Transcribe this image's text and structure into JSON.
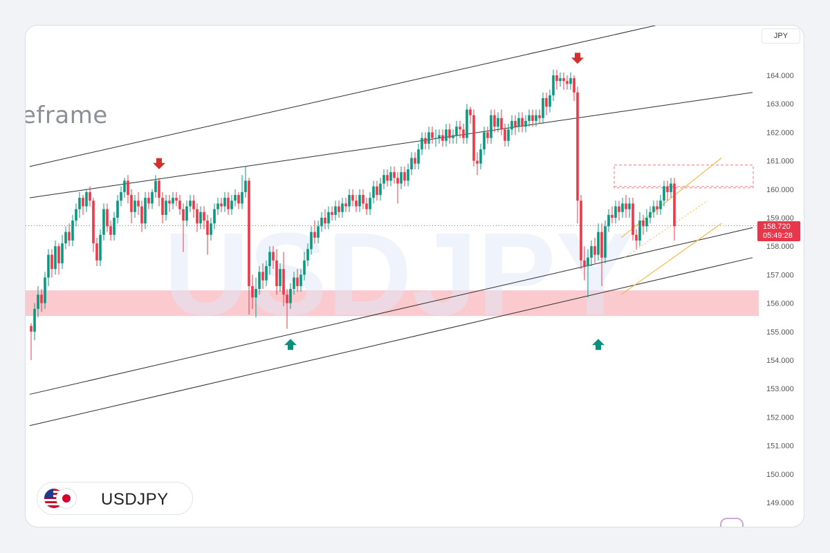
{
  "header": {
    "currency": "JPY"
  },
  "overlay": {
    "timeframe_text": "eframe",
    "watermark": "USDJPY"
  },
  "symbol": {
    "name": "USDJPY",
    "base_flag": "us-flag-icon",
    "quote_flag": "jp-flag-icon"
  },
  "price_tag": {
    "price": "158.720",
    "countdown": "05:49:28"
  },
  "colors": {
    "up": "#089981",
    "down": "#f23645",
    "zone": "#f9a6ad",
    "channel": "#2b2b2b",
    "wedge": "#f5b94a",
    "current_line": "#f23645"
  },
  "chart_data": {
    "type": "candlestick",
    "symbol": "USDJPY",
    "ylim": [
      148.6,
      164.8
    ],
    "yticks": [
      "164.000",
      "163.000",
      "162.000",
      "161.000",
      "160.000",
      "159.000",
      "158.000",
      "157.000",
      "156.000",
      "155.000",
      "154.000",
      "153.000",
      "152.000",
      "151.000",
      "150.000",
      "149.000"
    ],
    "current_price": 158.72,
    "support_zone": [
      155.55,
      156.45
    ],
    "rectangle_zone": [
      160.05,
      160.85
    ],
    "channel_lines": [
      {
        "from": [
          0,
          160.8
        ],
        "to": [
          190,
          166.0
        ]
      },
      {
        "from": [
          0,
          159.7
        ],
        "to": [
          209,
          163.4
        ]
      },
      {
        "from": [
          0,
          152.8
        ],
        "to": [
          209,
          158.65
        ]
      },
      {
        "from": [
          0,
          151.7
        ],
        "to": [
          209,
          157.6
        ]
      }
    ],
    "wedge_lines": [
      {
        "from": [
          171,
          158.3
        ],
        "to": [
          200,
          161.1
        ]
      },
      {
        "from": [
          171,
          156.3
        ],
        "to": [
          200,
          158.8
        ]
      }
    ],
    "arrows": [
      {
        "type": "down",
        "index": 37,
        "price": 160.85
      },
      {
        "type": "down",
        "index": 158,
        "price": 164.55
      },
      {
        "type": "up",
        "index": 75,
        "price": 154.6
      },
      {
        "type": "up",
        "index": 164,
        "price": 154.6
      }
    ],
    "candles": [
      [
        155.2,
        155.0,
        155.3,
        154.0
      ],
      [
        155.0,
        155.8,
        156.0,
        154.7
      ],
      [
        155.8,
        156.3,
        156.6,
        155.5
      ],
      [
        156.3,
        156.0,
        156.5,
        155.7
      ],
      [
        156.0,
        156.9,
        157.1,
        155.8
      ],
      [
        156.9,
        157.7,
        157.9,
        156.6
      ],
      [
        157.7,
        157.2,
        157.9,
        156.9
      ],
      [
        157.2,
        158.0,
        158.2,
        157.0
      ],
      [
        158.0,
        157.4,
        158.1,
        157.0
      ],
      [
        157.4,
        158.1,
        158.4,
        157.2
      ],
      [
        158.1,
        158.5,
        158.7,
        157.9
      ],
      [
        158.5,
        158.2,
        158.8,
        158.0
      ],
      [
        158.2,
        158.9,
        159.1,
        158.0
      ],
      [
        158.9,
        159.3,
        159.5,
        158.7
      ],
      [
        159.3,
        159.7,
        159.9,
        159.0
      ],
      [
        159.7,
        159.4,
        159.8,
        159.1
      ],
      [
        159.4,
        159.9,
        160.0,
        159.2
      ],
      [
        159.9,
        159.6,
        160.1,
        159.4
      ],
      [
        159.6,
        158.1,
        159.7,
        157.8
      ],
      [
        158.1,
        157.5,
        158.3,
        157.3
      ],
      [
        157.5,
        158.4,
        158.6,
        157.3
      ],
      [
        158.4,
        159.3,
        159.5,
        158.2
      ],
      [
        159.3,
        158.7,
        159.5,
        158.5
      ],
      [
        158.7,
        158.4,
        158.9,
        158.2
      ],
      [
        158.4,
        159.0,
        159.2,
        158.2
      ],
      [
        159.0,
        159.6,
        159.8,
        158.8
      ],
      [
        159.6,
        159.9,
        160.1,
        159.4
      ],
      [
        159.9,
        160.3,
        160.4,
        159.7
      ],
      [
        160.3,
        159.8,
        160.5,
        159.5
      ],
      [
        159.8,
        159.2,
        160.0,
        158.8
      ],
      [
        159.2,
        159.6,
        159.8,
        159.0
      ],
      [
        159.6,
        159.4,
        159.9,
        159.1
      ],
      [
        159.4,
        158.8,
        159.6,
        158.5
      ],
      [
        158.8,
        159.7,
        159.9,
        158.6
      ],
      [
        159.7,
        159.5,
        159.9,
        159.3
      ],
      [
        159.5,
        159.9,
        160.0,
        159.3
      ],
      [
        159.9,
        160.3,
        160.5,
        159.7
      ],
      [
        160.3,
        159.7,
        160.4,
        159.4
      ],
      [
        159.7,
        159.1,
        159.9,
        158.8
      ],
      [
        159.1,
        159.6,
        159.8,
        158.9
      ],
      [
        159.6,
        159.5,
        159.8,
        159.2
      ],
      [
        159.5,
        159.7,
        159.9,
        159.3
      ],
      [
        159.7,
        159.6,
        159.9,
        159.4
      ],
      [
        159.6,
        159.3,
        159.8,
        159.1
      ],
      [
        159.3,
        158.9,
        159.5,
        157.8
      ],
      [
        158.9,
        159.4,
        159.6,
        158.7
      ],
      [
        159.4,
        159.6,
        159.8,
        159.2
      ],
      [
        159.6,
        159.3,
        159.8,
        159.0
      ],
      [
        159.3,
        158.8,
        159.5,
        158.5
      ],
      [
        158.8,
        159.2,
        159.4,
        158.6
      ],
      [
        159.2,
        158.9,
        159.4,
        158.6
      ],
      [
        158.9,
        158.4,
        159.1,
        157.7
      ],
      [
        158.4,
        158.8,
        159.0,
        158.2
      ],
      [
        158.8,
        159.3,
        159.5,
        158.6
      ],
      [
        159.3,
        159.5,
        159.7,
        159.1
      ],
      [
        159.5,
        159.4,
        159.7,
        159.2
      ],
      [
        159.4,
        159.7,
        159.9,
        159.2
      ],
      [
        159.7,
        159.3,
        159.9,
        159.1
      ],
      [
        159.3,
        159.6,
        159.8,
        159.1
      ],
      [
        159.6,
        159.8,
        160.0,
        159.4
      ],
      [
        159.8,
        159.5,
        159.9,
        159.3
      ],
      [
        159.5,
        159.9,
        160.5,
        159.3
      ],
      [
        159.9,
        160.3,
        160.8,
        159.7
      ],
      [
        160.3,
        156.6,
        160.4,
        155.6
      ],
      [
        156.6,
        156.2,
        157.0,
        155.8
      ],
      [
        156.2,
        156.5,
        156.9,
        155.5
      ],
      [
        156.5,
        157.1,
        157.3,
        156.3
      ],
      [
        157.1,
        156.8,
        157.4,
        156.5
      ],
      [
        156.8,
        157.3,
        157.5,
        156.6
      ],
      [
        157.3,
        157.8,
        158.0,
        157.0
      ],
      [
        157.8,
        157.5,
        158.0,
        157.2
      ],
      [
        157.5,
        156.6,
        157.9,
        156.3
      ],
      [
        156.6,
        157.2,
        157.4,
        156.4
      ],
      [
        157.2,
        156.3,
        157.8,
        155.9
      ],
      [
        156.3,
        156.0,
        156.5,
        155.1
      ],
      [
        156.0,
        156.5,
        156.7,
        155.8
      ],
      [
        156.5,
        156.9,
        157.1,
        156.3
      ],
      [
        156.9,
        156.6,
        157.2,
        156.4
      ],
      [
        156.6,
        157.0,
        157.2,
        156.4
      ],
      [
        157.0,
        157.5,
        157.8,
        156.8
      ],
      [
        157.5,
        157.9,
        158.1,
        157.3
      ],
      [
        157.9,
        158.5,
        158.7,
        157.7
      ],
      [
        158.5,
        158.3,
        158.9,
        158.1
      ],
      [
        158.3,
        158.7,
        158.9,
        158.1
      ],
      [
        158.7,
        159.0,
        159.2,
        158.5
      ],
      [
        159.0,
        158.8,
        159.3,
        158.6
      ],
      [
        158.8,
        159.2,
        159.4,
        158.6
      ],
      [
        159.2,
        159.1,
        159.4,
        158.9
      ],
      [
        159.1,
        159.4,
        159.6,
        158.9
      ],
      [
        159.4,
        159.2,
        159.6,
        159.0
      ],
      [
        159.2,
        159.5,
        159.7,
        159.0
      ],
      [
        159.5,
        159.4,
        159.7,
        159.2
      ],
      [
        159.4,
        159.8,
        160.0,
        159.2
      ],
      [
        159.8,
        159.6,
        160.0,
        159.4
      ],
      [
        159.6,
        159.4,
        159.8,
        159.2
      ],
      [
        159.4,
        159.8,
        160.0,
        159.2
      ],
      [
        159.8,
        159.5,
        160.0,
        159.3
      ],
      [
        159.5,
        159.3,
        159.7,
        159.1
      ],
      [
        159.3,
        159.7,
        159.9,
        159.1
      ],
      [
        159.7,
        160.1,
        160.3,
        159.5
      ],
      [
        160.1,
        159.8,
        160.3,
        159.6
      ],
      [
        159.8,
        160.2,
        160.4,
        159.6
      ],
      [
        160.2,
        160.5,
        160.7,
        160.0
      ],
      [
        160.5,
        160.3,
        160.7,
        160.1
      ],
      [
        160.3,
        160.6,
        160.8,
        160.1
      ],
      [
        160.6,
        160.4,
        160.8,
        160.2
      ],
      [
        160.4,
        160.2,
        160.6,
        159.5
      ],
      [
        160.2,
        160.6,
        160.8,
        160.0
      ],
      [
        160.6,
        160.3,
        160.8,
        160.1
      ],
      [
        160.3,
        160.7,
        160.9,
        160.1
      ],
      [
        160.7,
        161.1,
        161.3,
        160.5
      ],
      [
        161.1,
        160.9,
        161.3,
        160.7
      ],
      [
        160.9,
        161.4,
        161.6,
        160.7
      ],
      [
        161.4,
        161.8,
        162.0,
        161.2
      ],
      [
        161.8,
        161.6,
        162.0,
        161.4
      ],
      [
        161.6,
        162.0,
        162.2,
        161.4
      ],
      [
        162.0,
        161.8,
        162.2,
        161.6
      ],
      [
        161.8,
        161.8,
        162.1,
        161.5
      ],
      [
        161.8,
        161.9,
        162.1,
        161.6
      ],
      [
        161.9,
        161.7,
        162.1,
        161.5
      ],
      [
        161.7,
        162.1,
        162.3,
        161.5
      ],
      [
        162.1,
        161.8,
        162.3,
        161.6
      ],
      [
        161.8,
        161.9,
        162.1,
        161.6
      ],
      [
        161.9,
        162.2,
        162.4,
        161.6
      ],
      [
        162.2,
        162.1,
        162.4,
        161.8
      ],
      [
        162.1,
        161.8,
        162.3,
        161.6
      ],
      [
        161.8,
        162.8,
        163.0,
        161.6
      ],
      [
        162.8,
        162.6,
        162.9,
        162.3
      ],
      [
        162.6,
        161.0,
        162.8,
        160.8
      ],
      [
        161.0,
        160.9,
        161.3,
        160.5
      ],
      [
        160.9,
        161.4,
        161.6,
        160.7
      ],
      [
        161.4,
        162.0,
        162.2,
        161.2
      ],
      [
        162.0,
        161.8,
        162.2,
        161.6
      ],
      [
        161.8,
        162.6,
        162.8,
        161.6
      ],
      [
        162.6,
        162.2,
        162.8,
        162.0
      ],
      [
        162.2,
        162.5,
        162.7,
        162.0
      ],
      [
        162.5,
        162.1,
        162.8,
        161.9
      ],
      [
        162.1,
        161.7,
        162.3,
        161.5
      ],
      [
        161.7,
        162.1,
        162.3,
        161.5
      ],
      [
        162.1,
        162.4,
        162.6,
        161.9
      ],
      [
        162.4,
        162.2,
        162.6,
        161.9
      ],
      [
        162.2,
        162.5,
        162.7,
        162.0
      ],
      [
        162.5,
        162.2,
        162.7,
        162.0
      ],
      [
        162.2,
        162.4,
        162.6,
        162.0
      ],
      [
        162.4,
        162.6,
        162.8,
        162.2
      ],
      [
        162.6,
        162.4,
        162.8,
        162.2
      ],
      [
        162.4,
        162.6,
        162.8,
        162.2
      ],
      [
        162.6,
        162.5,
        162.8,
        162.3
      ],
      [
        162.5,
        163.2,
        163.4,
        162.3
      ],
      [
        163.2,
        162.9,
        163.4,
        162.6
      ],
      [
        162.9,
        163.3,
        163.5,
        162.7
      ],
      [
        163.3,
        164.0,
        164.2,
        163.1
      ],
      [
        164.0,
        163.8,
        164.2,
        163.5
      ],
      [
        163.8,
        163.9,
        164.1,
        163.6
      ],
      [
        163.9,
        163.8,
        164.1,
        163.5
      ],
      [
        163.8,
        163.7,
        164.0,
        163.5
      ],
      [
        163.7,
        163.9,
        164.1,
        163.5
      ],
      [
        163.9,
        163.4,
        164.0,
        163.1
      ],
      [
        163.4,
        159.6,
        163.6,
        158.8
      ],
      [
        159.6,
        157.5,
        159.8,
        157.2
      ],
      [
        157.5,
        157.3,
        158.0,
        156.8
      ],
      [
        157.3,
        157.6,
        157.9,
        156.2
      ],
      [
        157.6,
        158.0,
        158.2,
        157.3
      ],
      [
        158.0,
        157.7,
        158.3,
        157.4
      ],
      [
        157.7,
        158.5,
        158.8,
        157.5
      ],
      [
        158.5,
        157.6,
        158.8,
        156.6
      ],
      [
        157.6,
        158.7,
        158.9,
        157.4
      ],
      [
        158.7,
        159.1,
        159.3,
        158.5
      ],
      [
        159.1,
        159.0,
        159.4,
        158.8
      ],
      [
        159.0,
        159.4,
        159.6,
        158.8
      ],
      [
        159.4,
        159.2,
        159.6,
        158.9
      ],
      [
        159.2,
        159.5,
        159.7,
        159.0
      ],
      [
        159.5,
        159.3,
        159.8,
        159.0
      ],
      [
        159.3,
        159.5,
        159.7,
        159.0
      ],
      [
        159.5,
        158.4,
        159.7,
        158.2
      ],
      [
        158.4,
        158.2,
        158.6,
        157.9
      ],
      [
        158.2,
        158.9,
        159.2,
        158.0
      ],
      [
        158.9,
        158.7,
        159.1,
        158.4
      ],
      [
        158.7,
        159.0,
        159.3,
        158.5
      ],
      [
        159.0,
        159.2,
        159.4,
        158.8
      ],
      [
        159.2,
        159.4,
        159.6,
        159.0
      ],
      [
        159.4,
        159.3,
        159.6,
        159.1
      ],
      [
        159.3,
        159.6,
        159.8,
        159.1
      ],
      [
        159.6,
        160.1,
        160.3,
        159.4
      ],
      [
        160.1,
        159.9,
        160.3,
        159.6
      ],
      [
        159.9,
        160.2,
        160.4,
        159.7
      ],
      [
        160.2,
        158.7,
        160.4,
        158.2
      ]
    ]
  }
}
